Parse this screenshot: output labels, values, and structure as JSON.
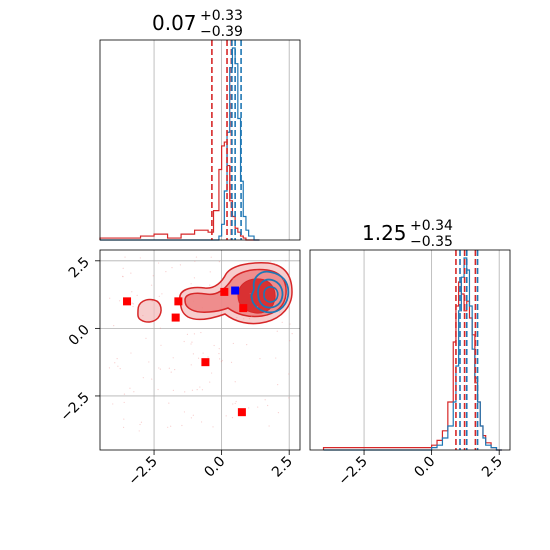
{
  "chart_data": {
    "type": "corner",
    "parameters": [
      "",
      ""
    ],
    "colors": {
      "red": "#d62728",
      "blue": "#1f77b4",
      "marker": "#ff0000",
      "marker_blue": "#0000ff"
    },
    "axis_range": [
      -4.5,
      2.9
    ],
    "grid": true,
    "ticks": {
      "values": [
        -2.5,
        0.0,
        2.5
      ],
      "labels": [
        "−2.5",
        "0.0",
        "2.5"
      ]
    },
    "titles": [
      {
        "value": "0.07",
        "plus": "+0.33",
        "minus": "−0.39"
      },
      {
        "value": "1.25",
        "plus": "+0.34",
        "minus": "−0.35"
      }
    ],
    "marginal_1": {
      "bin_edges": [
        -4.5,
        -4.0,
        -3.5,
        -3.0,
        -2.5,
        -2.0,
        -1.5,
        -1.0,
        -0.5,
        -0.3,
        -0.1,
        0.0,
        0.1,
        0.2,
        0.3,
        0.4,
        0.5,
        0.6,
        0.7,
        0.8,
        0.9,
        1.0,
        1.2,
        1.4
      ],
      "red": [
        0.01,
        0.01,
        0.01,
        0.02,
        0.03,
        0.01,
        0.03,
        0.05,
        0.04,
        0.15,
        0.36,
        0.48,
        0.5,
        0.38,
        0.2,
        0.12,
        0.06,
        0.04,
        0.02,
        0.01,
        0.0,
        0.0,
        0.0
      ],
      "blue": [
        0.0,
        0.0,
        0.0,
        0.0,
        0.0,
        0.0,
        0.0,
        0.0,
        0.0,
        0.0,
        0.02,
        0.08,
        0.25,
        0.55,
        0.88,
        0.98,
        0.9,
        0.62,
        0.3,
        0.12,
        0.05,
        0.02,
        0.0
      ],
      "red_quantiles": [
        -0.36,
        0.2,
        0.36
      ],
      "blue_quantiles": [
        0.38,
        0.5,
        0.72
      ]
    },
    "marginal_2": {
      "bin_edges": [
        -4.0,
        0.0,
        0.2,
        0.4,
        0.6,
        0.8,
        0.9,
        1.0,
        1.1,
        1.2,
        1.3,
        1.4,
        1.5,
        1.6,
        1.7,
        1.8,
        1.9,
        2.0,
        2.2,
        2.4,
        2.6
      ],
      "red": [
        0.01,
        0.02,
        0.04,
        0.08,
        0.2,
        0.45,
        0.6,
        0.7,
        0.65,
        0.58,
        0.62,
        0.55,
        0.48,
        0.28,
        0.2,
        0.1,
        0.06,
        0.03,
        0.01,
        0.0
      ],
      "blue": [
        0.0,
        0.01,
        0.02,
        0.05,
        0.1,
        0.2,
        0.35,
        0.58,
        0.72,
        0.8,
        0.75,
        0.6,
        0.42,
        0.3,
        0.2,
        0.1,
        0.05,
        0.02,
        0.01,
        0.0
      ],
      "red_quantiles": [
        0.9,
        1.22,
        1.62
      ],
      "blue_quantiles": [
        1.05,
        1.3,
        1.7
      ]
    },
    "scatter_markers": [
      {
        "x": -3.5,
        "y": 1.0,
        "color": "red"
      },
      {
        "x": -1.6,
        "y": 1.0,
        "color": "red"
      },
      {
        "x": -1.7,
        "y": 0.4,
        "color": "red"
      },
      {
        "x": 0.1,
        "y": 1.35,
        "color": "red"
      },
      {
        "x": 0.8,
        "y": 0.75,
        "color": "red"
      },
      {
        "x": -0.6,
        "y": -1.25,
        "color": "red"
      },
      {
        "x": 0.75,
        "y": -3.1,
        "color": "red"
      },
      {
        "x": 0.5,
        "y": 1.4,
        "color": "blue"
      }
    ]
  }
}
